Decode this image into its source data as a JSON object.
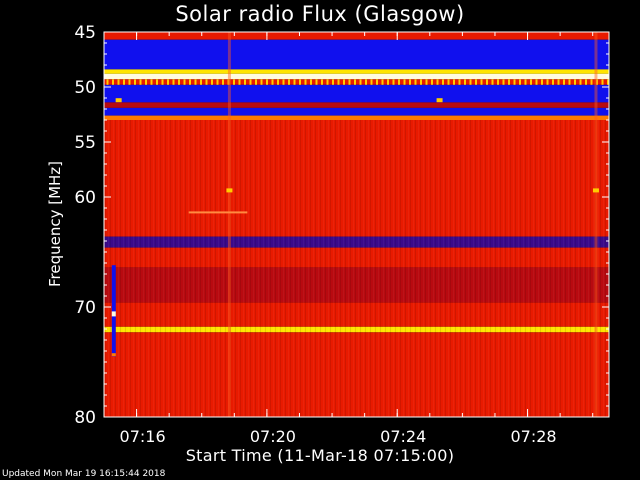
{
  "chart_data": {
    "type": "heatmap",
    "title": "Solar radio Flux (Glasgow)",
    "ylabel": "Frequency [MHz]",
    "xlabel": "Start Time (11-Mar-18 07:15:00)",
    "ylim": [
      45,
      80
    ],
    "y_inverted": true,
    "y_ticks": [
      45,
      50,
      55,
      60,
      70,
      80
    ],
    "x_range_min": [
      0,
      15.5
    ],
    "x_ticks": [
      {
        "label": "07:16",
        "min": 1
      },
      {
        "label": "07:20",
        "min": 5
      },
      {
        "label": "07:24",
        "min": 9
      },
      {
        "label": "07:28",
        "min": 13
      }
    ],
    "colormap": [
      "#0000ff",
      "#ff0000",
      "#ffff00",
      "#ffffff"
    ],
    "frequency_bands": [
      {
        "from": 45.0,
        "to": 45.7,
        "level": "red"
      },
      {
        "from": 45.7,
        "to": 48.4,
        "level": "blue"
      },
      {
        "from": 48.4,
        "to": 48.8,
        "level": "yellow"
      },
      {
        "from": 48.8,
        "to": 49.3,
        "level": "white"
      },
      {
        "from": 49.3,
        "to": 49.8,
        "level": "red"
      },
      {
        "from": 49.8,
        "to": 51.4,
        "level": "blue"
      },
      {
        "from": 51.4,
        "to": 51.9,
        "level": "darkred"
      },
      {
        "from": 51.9,
        "to": 52.6,
        "level": "blue"
      },
      {
        "from": 52.6,
        "to": 53.0,
        "level": "orange"
      },
      {
        "from": 53.0,
        "to": 63.6,
        "level": "red"
      },
      {
        "from": 63.6,
        "to": 64.6,
        "level": "darkblue"
      },
      {
        "from": 64.6,
        "to": 66.4,
        "level": "red"
      },
      {
        "from": 66.4,
        "to": 69.6,
        "level": "darkred"
      },
      {
        "from": 69.6,
        "to": 71.8,
        "level": "red"
      },
      {
        "from": 71.8,
        "to": 72.3,
        "level": "yellow"
      },
      {
        "from": 72.3,
        "to": 80.0,
        "level": "red"
      }
    ],
    "features": [
      {
        "type": "vertical_streak",
        "min": 0.3,
        "from": 66.2,
        "to": 74.5
      },
      {
        "type": "vertical_line",
        "min": 3.85
      },
      {
        "type": "vertical_line",
        "min": 15.1
      },
      {
        "type": "spot",
        "min": 0.45,
        "freq": 51.2
      },
      {
        "type": "spot",
        "min": 10.3,
        "freq": 51.2
      },
      {
        "type": "spot",
        "min": 3.85,
        "freq": 59.4
      },
      {
        "type": "spot",
        "min": 15.1,
        "freq": 59.4
      },
      {
        "type": "segment",
        "min_from": 2.6,
        "min_to": 4.4,
        "freq": 61.4
      }
    ]
  },
  "footer": "Updated Mon Mar 19 16:15:44 2018"
}
